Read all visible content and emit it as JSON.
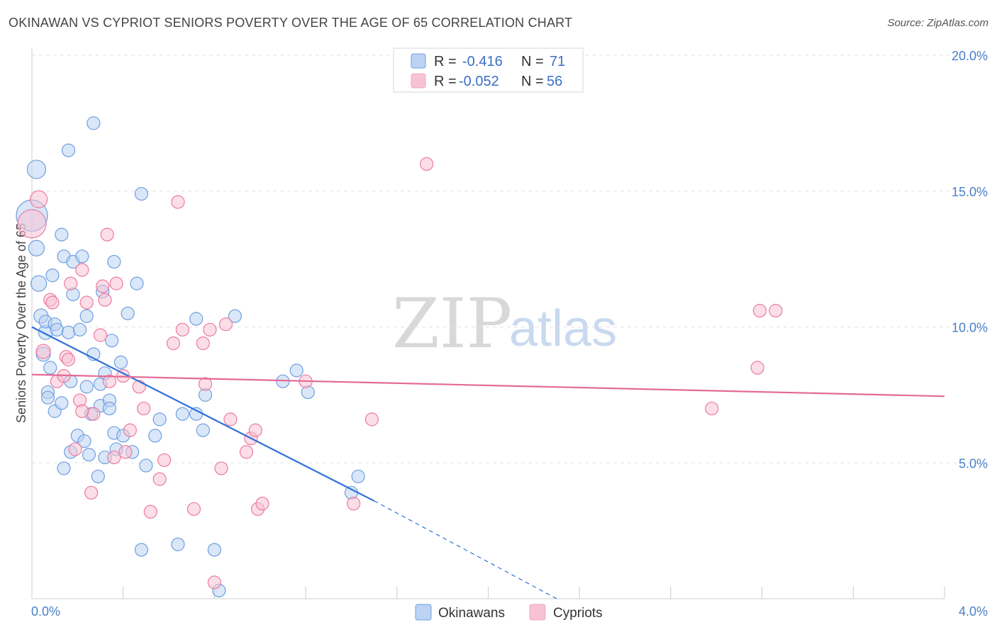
{
  "title": "OKINAWAN VS CYPRIOT SENIORS POVERTY OVER THE AGE OF 65 CORRELATION CHART",
  "source": "Source: ZipAtlas.com",
  "watermark": {
    "zip": "ZIP",
    "atlas": "atlas"
  },
  "legend": {
    "rows": [
      {
        "r_label": "R =",
        "r_value": "-0.416",
        "n_label": "N =",
        "n_value": "71",
        "color": "#6f9fe0"
      },
      {
        "r_label": "R =",
        "r_value": "-0.052",
        "n_label": "N =",
        "n_value": "56",
        "color": "#f3a4bf"
      }
    ]
  },
  "chart_data": {
    "type": "scatter",
    "xlabel": "",
    "ylabel": "Seniors Poverty Over the Age of 65",
    "xlim": [
      0,
      4.0
    ],
    "ylim": [
      0,
      20.0
    ],
    "x_tick_labels": [
      "0.0%",
      "4.0%"
    ],
    "y_ticks": [
      5,
      10,
      15,
      20
    ],
    "y_tick_labels": [
      "5.0%",
      "10.0%",
      "15.0%",
      "20.0%"
    ],
    "grid": true,
    "series": [
      {
        "name": "Okinawans",
        "color": "#6f9fe0",
        "fill": "#bcd3f3",
        "trend": {
          "x": [
            0.0,
            1.5
          ],
          "y": [
            10.0,
            3.6
          ],
          "dash_to": [
            2.3,
            0.0
          ]
        },
        "points": [
          [
            0.0,
            14.1,
            22
          ],
          [
            0.02,
            15.8,
            13
          ],
          [
            0.02,
            12.9,
            11
          ],
          [
            0.03,
            11.6,
            11
          ],
          [
            0.04,
            10.4,
            10
          ],
          [
            0.05,
            9.0,
            10
          ],
          [
            0.06,
            9.8,
            10
          ],
          [
            0.06,
            10.2,
            9
          ],
          [
            0.07,
            7.6,
            9
          ],
          [
            0.07,
            7.4,
            9
          ],
          [
            0.08,
            8.5,
            9
          ],
          [
            0.09,
            11.9,
            9
          ],
          [
            0.1,
            10.1,
            9
          ],
          [
            0.1,
            6.9,
            9
          ],
          [
            0.11,
            9.9,
            9
          ],
          [
            0.13,
            13.4,
            9
          ],
          [
            0.13,
            7.2,
            9
          ],
          [
            0.14,
            12.6,
            9
          ],
          [
            0.14,
            4.8,
            9
          ],
          [
            0.16,
            9.8,
            9
          ],
          [
            0.16,
            16.5,
            9
          ],
          [
            0.17,
            8.0,
            9
          ],
          [
            0.17,
            5.4,
            9
          ],
          [
            0.18,
            12.4,
            9
          ],
          [
            0.18,
            11.2,
            9
          ],
          [
            0.2,
            6.0,
            9
          ],
          [
            0.21,
            9.9,
            9
          ],
          [
            0.22,
            12.6,
            9
          ],
          [
            0.23,
            5.8,
            9
          ],
          [
            0.24,
            7.8,
            9
          ],
          [
            0.24,
            10.4,
            9
          ],
          [
            0.25,
            5.3,
            9
          ],
          [
            0.26,
            6.8,
            9
          ],
          [
            0.27,
            17.5,
            9
          ],
          [
            0.27,
            9.0,
            9
          ],
          [
            0.29,
            4.5,
            9
          ],
          [
            0.3,
            7.9,
            9
          ],
          [
            0.3,
            7.1,
            9
          ],
          [
            0.31,
            11.3,
            9
          ],
          [
            0.32,
            5.2,
            9
          ],
          [
            0.32,
            8.3,
            9
          ],
          [
            0.34,
            7.3,
            9
          ],
          [
            0.34,
            7.0,
            9
          ],
          [
            0.35,
            9.5,
            9
          ],
          [
            0.36,
            12.4,
            9
          ],
          [
            0.36,
            6.1,
            9
          ],
          [
            0.37,
            5.5,
            9
          ],
          [
            0.39,
            8.7,
            9
          ],
          [
            0.4,
            6.0,
            9
          ],
          [
            0.42,
            10.5,
            9
          ],
          [
            0.44,
            5.4,
            9
          ],
          [
            0.46,
            11.6,
            9
          ],
          [
            0.48,
            14.9,
            9
          ],
          [
            0.48,
            1.8,
            9
          ],
          [
            0.5,
            4.9,
            9
          ],
          [
            0.54,
            6.0,
            9
          ],
          [
            0.56,
            6.6,
            9
          ],
          [
            0.64,
            2.0,
            9
          ],
          [
            0.72,
            6.8,
            9
          ],
          [
            0.72,
            10.3,
            9
          ],
          [
            0.75,
            6.2,
            9
          ],
          [
            0.76,
            7.5,
            9
          ],
          [
            0.8,
            1.8,
            9
          ],
          [
            0.82,
            0.3,
            9
          ],
          [
            0.89,
            10.4,
            9
          ],
          [
            1.1,
            8.0,
            9
          ],
          [
            1.16,
            8.4,
            9
          ],
          [
            1.21,
            7.6,
            9
          ],
          [
            1.4,
            3.9,
            9
          ],
          [
            1.43,
            4.5,
            9
          ],
          [
            0.66,
            6.8,
            9
          ]
        ]
      },
      {
        "name": "Cypriots",
        "color": "#ec7aa0",
        "fill": "#f7c3d4",
        "trend": {
          "x": [
            0.0,
            4.0
          ],
          "y": [
            8.25,
            7.45
          ]
        },
        "points": [
          [
            0.0,
            13.8,
            20
          ],
          [
            0.03,
            14.7,
            12
          ],
          [
            0.05,
            9.1,
            10
          ],
          [
            0.08,
            11.0,
            9
          ],
          [
            0.09,
            10.9,
            9
          ],
          [
            0.11,
            8.0,
            9
          ],
          [
            0.14,
            8.2,
            9
          ],
          [
            0.15,
            8.9,
            9
          ],
          [
            0.16,
            8.8,
            9
          ],
          [
            0.17,
            11.6,
            9
          ],
          [
            0.19,
            5.5,
            9
          ],
          [
            0.21,
            7.3,
            9
          ],
          [
            0.22,
            12.1,
            9
          ],
          [
            0.24,
            10.9,
            9
          ],
          [
            0.26,
            3.9,
            9
          ],
          [
            0.27,
            6.8,
            9
          ],
          [
            0.3,
            9.7,
            9
          ],
          [
            0.31,
            11.5,
            9
          ],
          [
            0.32,
            11.0,
            9
          ],
          [
            0.33,
            13.4,
            9
          ],
          [
            0.34,
            8.0,
            9
          ],
          [
            0.36,
            5.2,
            9
          ],
          [
            0.37,
            11.6,
            9
          ],
          [
            0.4,
            8.2,
            9
          ],
          [
            0.41,
            5.4,
            9
          ],
          [
            0.43,
            6.2,
            9
          ],
          [
            0.47,
            7.8,
            9
          ],
          [
            0.49,
            7.0,
            9
          ],
          [
            0.52,
            3.2,
            9
          ],
          [
            0.56,
            4.4,
            9
          ],
          [
            0.58,
            5.1,
            9
          ],
          [
            0.62,
            9.4,
            9
          ],
          [
            0.64,
            14.6,
            9
          ],
          [
            0.66,
            9.9,
            9
          ],
          [
            0.71,
            3.3,
            9
          ],
          [
            0.75,
            9.4,
            9
          ],
          [
            0.76,
            7.9,
            9
          ],
          [
            0.78,
            9.9,
            9
          ],
          [
            0.8,
            0.6,
            9
          ],
          [
            0.83,
            4.8,
            9
          ],
          [
            0.85,
            10.1,
            9
          ],
          [
            0.87,
            6.6,
            9
          ],
          [
            0.94,
            5.4,
            9
          ],
          [
            0.96,
            5.9,
            9
          ],
          [
            0.98,
            6.2,
            9
          ],
          [
            0.99,
            3.3,
            9
          ],
          [
            1.01,
            3.5,
            9
          ],
          [
            1.2,
            8.0,
            9
          ],
          [
            1.41,
            3.5,
            9
          ],
          [
            1.49,
            6.6,
            9
          ],
          [
            1.73,
            16.0,
            9
          ],
          [
            2.98,
            7.0,
            9
          ],
          [
            3.18,
            8.5,
            9
          ],
          [
            3.19,
            10.6,
            9
          ],
          [
            3.26,
            10.6,
            9
          ],
          [
            0.22,
            6.9,
            9
          ]
        ]
      }
    ]
  }
}
